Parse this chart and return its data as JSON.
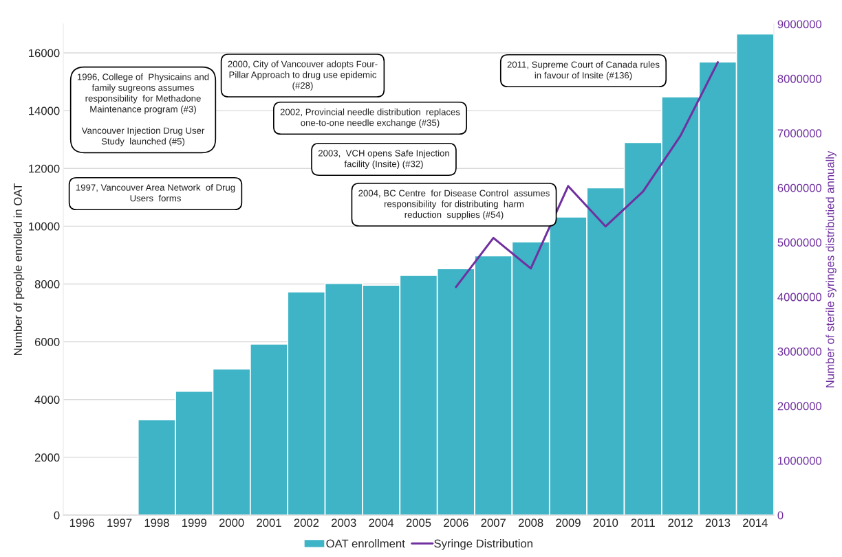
{
  "chart_data": {
    "type": "bar",
    "categories": [
      "1996",
      "1997",
      "1998",
      "1999",
      "2000",
      "2001",
      "2002",
      "2003",
      "2004",
      "2005",
      "2006",
      "2007",
      "2008",
      "2009",
      "2010",
      "2011",
      "2012",
      "2013",
      "2014"
    ],
    "ylabel": "Number of people enrolled in OAT",
    "y2label": "Number of sterile syringes distributied annually",
    "series": [
      {
        "name": "OAT enrollment",
        "color": "#3eb4c6",
        "values": [
          0,
          0,
          3300,
          4290,
          5060,
          5920,
          7730,
          8020,
          7960,
          8300,
          8530,
          8980,
          9460,
          10320,
          11330,
          12900,
          14480,
          15690,
          16660
        ]
      },
      {
        "name": "Syringe Distribution",
        "type": "line",
        "axis": "y2",
        "color": "#7030a0",
        "values": [
          null,
          null,
          null,
          null,
          null,
          null,
          null,
          null,
          null,
          null,
          4180000,
          5080000,
          4520000,
          6030000,
          5290000,
          5930000,
          6950000,
          8300000,
          null
        ]
      }
    ],
    "ylim": [
      0,
      17000
    ],
    "yticks": [
      0,
      2000,
      4000,
      6000,
      8000,
      10000,
      12000,
      14000,
      16000
    ],
    "y2lim": [
      0,
      9000000
    ],
    "y2ticks": [
      0,
      1000000,
      2000000,
      3000000,
      4000000,
      5000000,
      6000000,
      7000000,
      8000000,
      9000000
    ],
    "grid": "y",
    "legend": "bottom",
    "marker": "none",
    "line_style": "solid",
    "annotations": [
      "1996, College of  Physicains and\nfamily sugreons assumes\nresponsibility  for Methadone\nMaintenance program (#3)\n\nVancouver Injection Drug User\nStudy  launched (#5)",
      "1997, Vancouver Area Network  of Drug\nUsers  forms",
      "2000, City of Vancouver adopts Four-\nPillar Approach to drug use epidemic\n(#28)",
      "2002, Provincial needle distribution  replaces\none-to-one needle exchange (#35)",
      "2003,  VCH opens Safe Injection\nfacility (Insite) (#32)",
      "2004, BC Centre  for Disease Control  assumes\nresponsibility  for distributing  harm\nreduction  supplies (#54)",
      "2011, Supreme Court of Canada rules\nin favour of Insite (#136)"
    ]
  }
}
